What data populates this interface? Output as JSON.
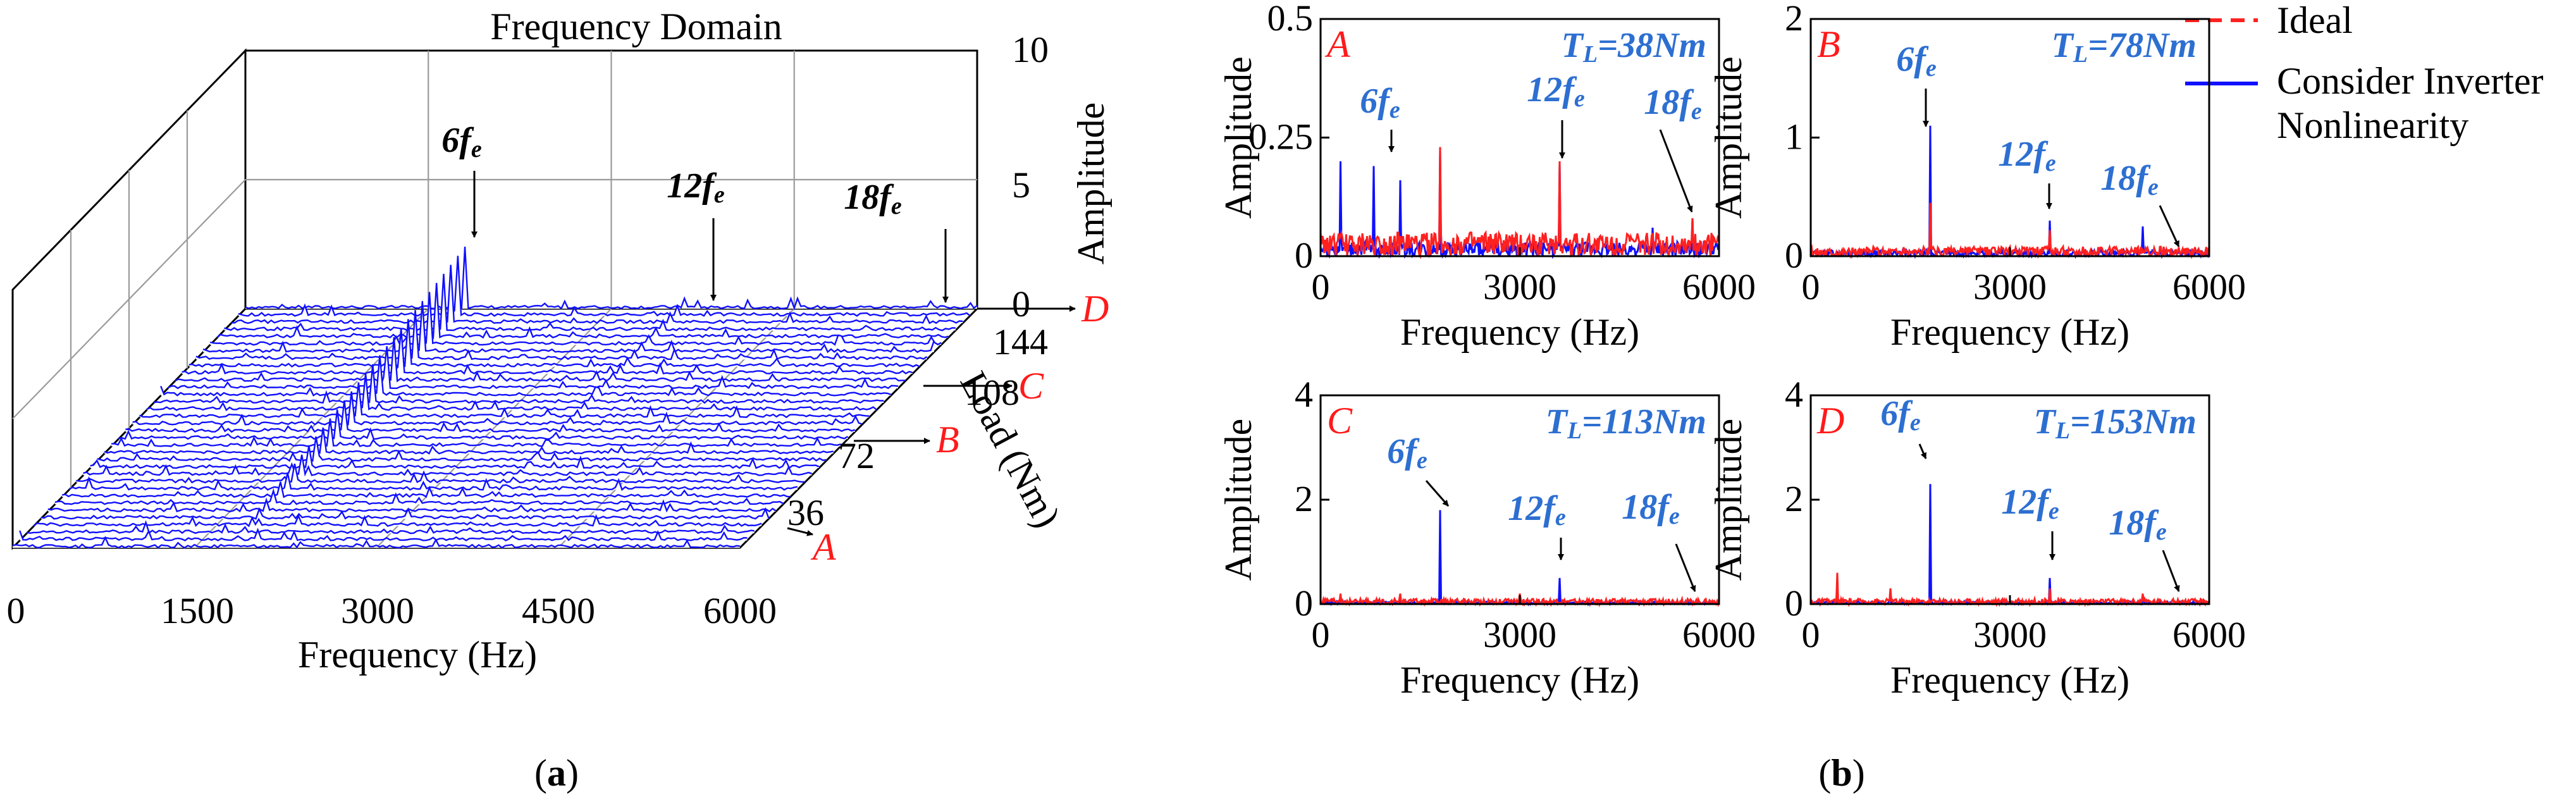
{
  "colors": {
    "ideal": "#ff2020",
    "nonlinear": "#1010ff",
    "annotation_blue": "#2d6fd1",
    "panel_letter_red": "#ff1a1a"
  },
  "panel_a": {
    "caption_open": "(",
    "caption_letter": "a",
    "caption_close": ")",
    "title": "Frequency Domain",
    "xlabel": "Frequency (Hz)",
    "ylabel": "Load (Nm)",
    "zlabel": "Amplitude",
    "x_ticks": [
      "0",
      "1500",
      "3000",
      "4500",
      "6000"
    ],
    "load_ticks": [
      "36",
      "72",
      "108",
      "144"
    ],
    "amp_ticks": [
      "0",
      "5",
      "10"
    ],
    "markers": [
      "A",
      "B",
      "C",
      "D"
    ],
    "harmonics": {
      "h6_base": "6f",
      "h12_base": "12f",
      "h18_base": "18f",
      "sub": "e"
    }
  },
  "panel_b": {
    "caption_open": "(",
    "caption_letter": "b",
    "caption_close": ")",
    "legend": {
      "ideal": "Ideal",
      "nonlinear_line1": "Consider Inverter",
      "nonlinear_line2": "Nonlinearity"
    },
    "subplots": {
      "A": {
        "letter": "A",
        "load_base": "T",
        "load_sub": "L",
        "load_value": "=38Nm",
        "y_ticks": [
          "0",
          "0.25",
          "0.5"
        ],
        "x_ticks": [
          "0",
          "3000",
          "6000"
        ],
        "xlabel": "Frequency (Hz)",
        "ylabel": "Amplitude"
      },
      "B": {
        "letter": "B",
        "load_base": "T",
        "load_sub": "L",
        "load_value": "=78Nm",
        "y_ticks": [
          "0",
          "1",
          "2"
        ],
        "x_ticks": [
          "0",
          "3000",
          "6000"
        ],
        "xlabel": "Frequency (Hz)",
        "ylabel": "Amplitude"
      },
      "C": {
        "letter": "C",
        "load_base": "T",
        "load_sub": "L",
        "load_value": "=113Nm",
        "y_ticks": [
          "0",
          "2",
          "4"
        ],
        "x_ticks": [
          "0",
          "3000",
          "6000"
        ],
        "xlabel": "Frequency (Hz)",
        "ylabel": "Amplitude"
      },
      "D": {
        "letter": "D",
        "load_base": "T",
        "load_sub": "L",
        "load_value": "=153Nm",
        "y_ticks": [
          "0",
          "2",
          "4"
        ],
        "x_ticks": [
          "0",
          "3000",
          "6000"
        ],
        "xlabel": "Frequency (Hz)",
        "ylabel": "Amplitude"
      }
    }
  },
  "chart_data": [
    {
      "type": "line",
      "title": "Frequency Domain",
      "view": "3d waterfall",
      "xlabel": "Frequency (Hz)",
      "ylabel": "Load (Nm)",
      "zlabel": "Amplitude",
      "xlim": [
        0,
        6000
      ],
      "ylim": [
        0,
        153
      ],
      "zlim": [
        0,
        10
      ],
      "load_ticks": [
        36,
        72,
        108,
        144
      ],
      "load_markers": [
        {
          "label": "A",
          "load": 38
        },
        {
          "label": "B",
          "load": 78
        },
        {
          "label": "C",
          "load": 113
        },
        {
          "label": "D",
          "load": 153
        }
      ],
      "n_slices": 34,
      "harmonic_freqs_hz": [
        1800,
        3600,
        5400
      ],
      "h6_amplitude_min": 0.1,
      "h6_amplitude_max": 2.4,
      "h12_amplitude": 0.4,
      "h18_amplitude": 0.1,
      "series": [
        {
          "name": "Consider Inverter Nonlinearity",
          "color": "#1010ff"
        }
      ]
    },
    {
      "type": "line",
      "panel": "A",
      "load": "TL=38Nm",
      "xlabel": "Frequency (Hz)",
      "ylabel": "Amplitude",
      "xlim": [
        0,
        6000
      ],
      "ylim": [
        0,
        0.5
      ],
      "series": [
        {
          "name": "Ideal",
          "peaks": [
            [
              1800,
              0.23
            ],
            [
              3600,
              0.2
            ],
            [
              5600,
              0.08
            ]
          ],
          "noise_floor": 0.05
        },
        {
          "name": "Consider Inverter Nonlinearity",
          "peaks": [
            [
              300,
              0.2
            ],
            [
              800,
              0.19
            ],
            [
              1200,
              0.16
            ],
            [
              1800,
              0.23
            ],
            [
              3600,
              0.2
            ],
            [
              5000,
              0.06
            ],
            [
              5600,
              0.08
            ]
          ],
          "noise_floor": 0.03
        }
      ]
    },
    {
      "type": "line",
      "panel": "B",
      "load": "TL=78Nm",
      "xlabel": "Frequency (Hz)",
      "ylabel": "Amplitude",
      "xlim": [
        0,
        6000
      ],
      "ylim": [
        0,
        2
      ],
      "series": [
        {
          "name": "Ideal",
          "peaks": [
            [
              1800,
              0.45
            ],
            [
              3600,
              0.22
            ]
          ],
          "noise_floor": 0.08
        },
        {
          "name": "Consider Inverter Nonlinearity",
          "peaks": [
            [
              1800,
              1.1
            ],
            [
              3600,
              0.3
            ],
            [
              5000,
              0.25
            ]
          ],
          "noise_floor": 0.05
        }
      ]
    },
    {
      "type": "line",
      "panel": "C",
      "load": "TL=113Nm",
      "xlabel": "Frequency (Hz)",
      "ylabel": "Amplitude",
      "xlim": [
        0,
        6000
      ],
      "ylim": [
        0,
        4
      ],
      "series": [
        {
          "name": "Ideal",
          "peaks": [
            [
              300,
              0.2
            ],
            [
              1200,
              0.2
            ],
            [
              3000,
              0.2
            ]
          ],
          "noise_floor": 0.1
        },
        {
          "name": "Consider Inverter Nonlinearity",
          "peaks": [
            [
              1800,
              1.8
            ],
            [
              3600,
              0.5
            ]
          ],
          "noise_floor": 0.05
        }
      ]
    },
    {
      "type": "line",
      "panel": "D",
      "load": "TL=153Nm",
      "xlabel": "Frequency (Hz)",
      "ylabel": "Amplitude",
      "xlim": [
        0,
        6000
      ],
      "ylim": [
        0,
        4
      ],
      "series": [
        {
          "name": "Ideal",
          "peaks": [
            [
              400,
              0.6
            ],
            [
              1200,
              0.3
            ],
            [
              3600,
              0.3
            ],
            [
              5000,
              0.2
            ]
          ],
          "noise_floor": 0.1
        },
        {
          "name": "Consider Inverter Nonlinearity",
          "peaks": [
            [
              1800,
              2.3
            ],
            [
              3600,
              0.5
            ],
            [
              5000,
              0.1
            ]
          ],
          "noise_floor": 0.05
        }
      ]
    }
  ]
}
